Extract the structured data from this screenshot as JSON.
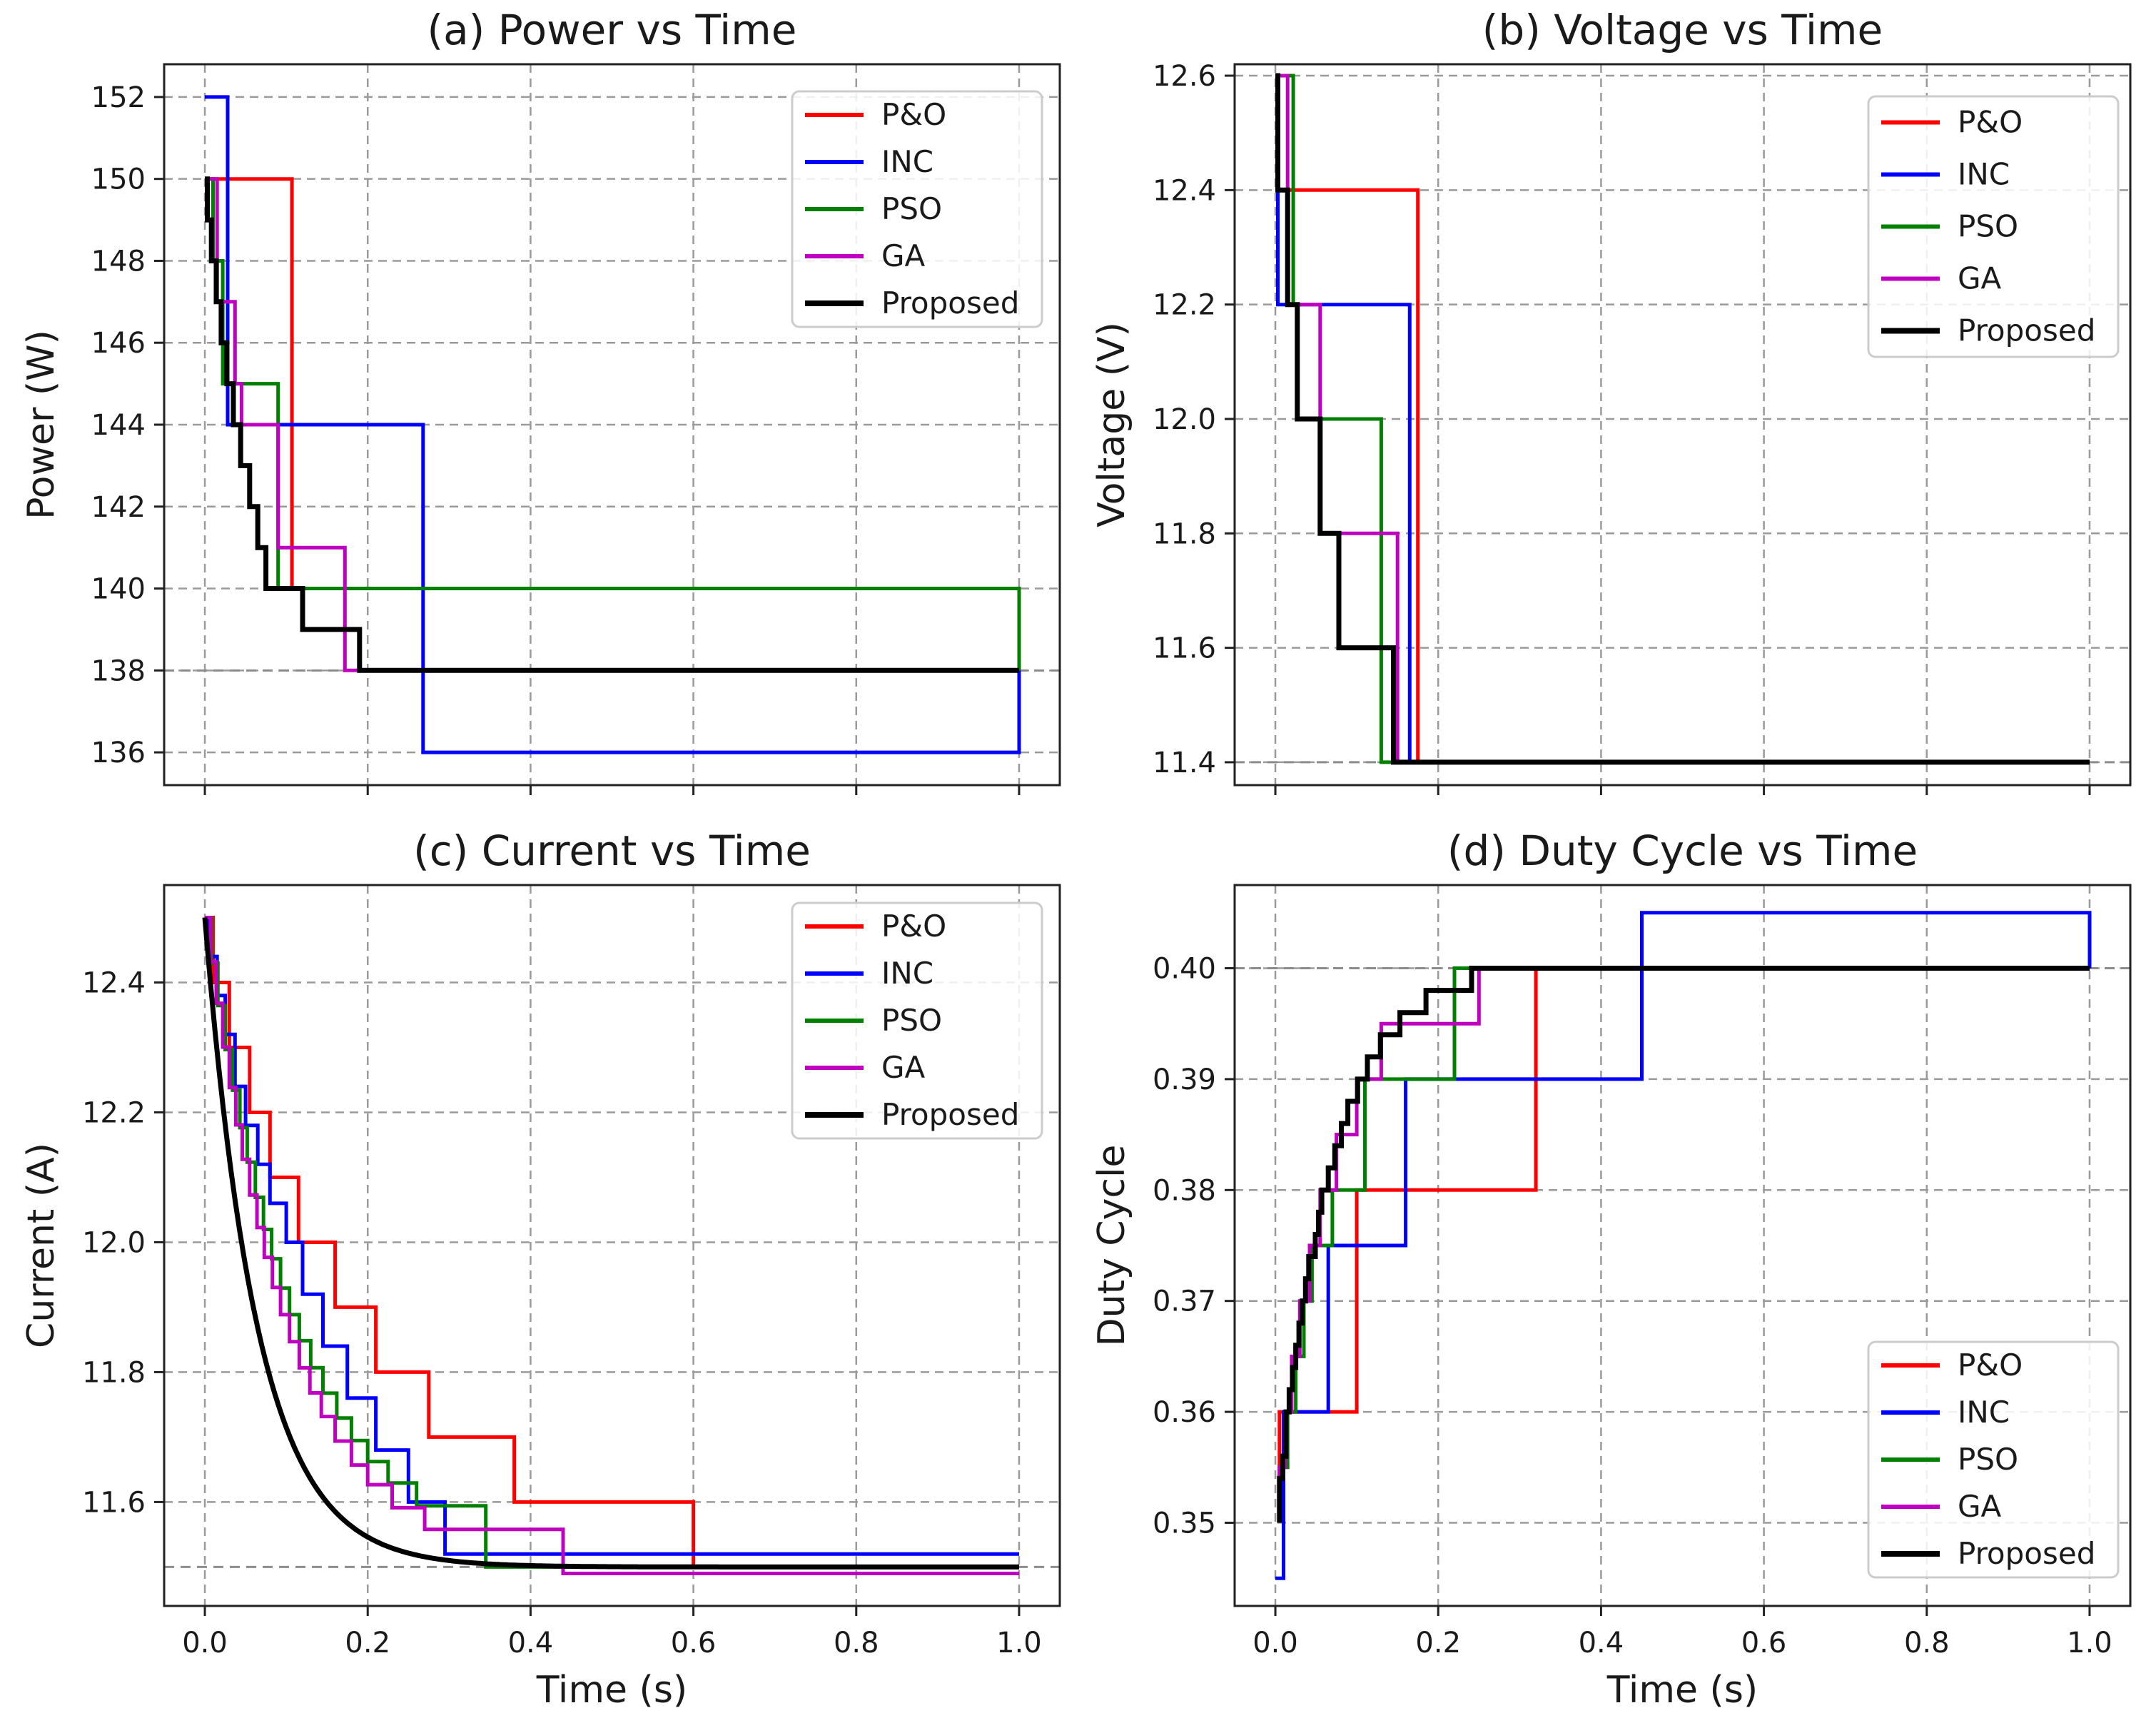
{
  "chart_data": [
    {
      "type": "line",
      "title": "(a) Power vs Time",
      "xlabel": "",
      "ylabel": "Power (W)",
      "xlim": [
        -0.05,
        1.05
      ],
      "ylim": [
        135.2,
        152.8
      ],
      "xticks": [
        0.0,
        0.2,
        0.4,
        0.6,
        0.8,
        1.0
      ],
      "xtick_labels": [
        "",
        "",
        "",
        "",
        "",
        ""
      ],
      "yticks": [
        136,
        138,
        140,
        142,
        144,
        146,
        148,
        150,
        152
      ],
      "ytick_labels": [
        "136",
        "138",
        "140",
        "142",
        "144",
        "146",
        "148",
        "150",
        "152"
      ],
      "grid": true,
      "reference_line": 138,
      "legend_position": "top-right",
      "series": [
        {
          "name": "P&O",
          "color": "#ff0000",
          "width": 5,
          "x": [
            0,
            0.02,
            0.107,
            0.107,
            1.0,
            1.0
          ],
          "y": [
            150,
            150,
            150,
            140,
            140,
            138
          ]
        },
        {
          "name": "INC",
          "color": "#0000ff",
          "width": 5,
          "x": [
            0,
            0.028,
            0.028,
            0.268,
            0.268,
            1.0,
            1.0
          ],
          "y": [
            152,
            152,
            144,
            144,
            136,
            136,
            138
          ]
        },
        {
          "name": "PSO",
          "color": "#008000",
          "width": 5,
          "x": [
            0,
            0.01,
            0.01,
            0.022,
            0.022,
            0.09,
            0.09,
            1.0,
            1.0
          ],
          "y": [
            150,
            150,
            148,
            148,
            145,
            145,
            140,
            140,
            138
          ]
        },
        {
          "name": "GA",
          "color": "#c000c0",
          "width": 5,
          "x": [
            0,
            0.015,
            0.015,
            0.037,
            0.037,
            0.045,
            0.045,
            0.09,
            0.09,
            0.172,
            0.172,
            1.0
          ],
          "y": [
            150,
            150,
            147,
            147,
            145,
            145,
            144,
            144,
            141,
            141,
            138,
            138
          ]
        },
        {
          "name": "Proposed",
          "color": "#000000",
          "width": 7,
          "x": [
            0,
            0.003,
            0.003,
            0.008,
            0.008,
            0.014,
            0.014,
            0.02,
            0.02,
            0.027,
            0.027,
            0.035,
            0.035,
            0.044,
            0.044,
            0.055,
            0.055,
            0.065,
            0.065,
            0.075,
            0.075,
            0.09,
            0.09,
            0.12,
            0.12,
            0.19,
            0.19,
            1.0
          ],
          "y": [
            150,
            150,
            149,
            149,
            148,
            148,
            147,
            147,
            146,
            146,
            145,
            145,
            144,
            144,
            143,
            143,
            142,
            142,
            141,
            141,
            140,
            140,
            140,
            140,
            139,
            139,
            138,
            138
          ]
        }
      ]
    },
    {
      "type": "line",
      "title": "(b) Voltage vs Time",
      "xlabel": "",
      "ylabel": "Voltage (V)",
      "xlim": [
        -0.05,
        1.05
      ],
      "ylim": [
        11.36,
        12.62
      ],
      "xticks": [
        0.0,
        0.2,
        0.4,
        0.6,
        0.8,
        1.0
      ],
      "xtick_labels": [
        "",
        "",
        "",
        "",
        "",
        ""
      ],
      "yticks": [
        11.4,
        11.6,
        11.8,
        12.0,
        12.2,
        12.4,
        12.6
      ],
      "ytick_labels": [
        "11.4",
        "11.6",
        "11.8",
        "12.0",
        "12.2",
        "12.4",
        "12.6"
      ],
      "grid": true,
      "reference_line": 11.4,
      "legend_position": "top-right",
      "series": [
        {
          "name": "P&O",
          "color": "#ff0000",
          "width": 5,
          "x": [
            0,
            0.003,
            0.003,
            0.175,
            0.175,
            1.0
          ],
          "y": [
            12.6,
            12.6,
            12.4,
            12.4,
            11.4,
            11.4
          ]
        },
        {
          "name": "INC",
          "color": "#0000ff",
          "width": 5,
          "x": [
            0,
            0.003,
            0.003,
            0.165,
            0.165,
            1.0
          ],
          "y": [
            12.6,
            12.6,
            12.2,
            12.2,
            11.4,
            11.4
          ]
        },
        {
          "name": "PSO",
          "color": "#008000",
          "width": 5,
          "x": [
            0,
            0.022,
            0.022,
            0.027,
            0.027,
            0.13,
            0.13,
            1.0
          ],
          "y": [
            12.6,
            12.6,
            12.2,
            12.2,
            12.0,
            12.0,
            11.4,
            11.4
          ]
        },
        {
          "name": "GA",
          "color": "#c000c0",
          "width": 5,
          "x": [
            0,
            0.015,
            0.015,
            0.055,
            0.055,
            0.15,
            0.15,
            1.0
          ],
          "y": [
            12.6,
            12.6,
            12.2,
            12.2,
            11.8,
            11.8,
            11.4,
            11.4
          ]
        },
        {
          "name": "Proposed",
          "color": "#000000",
          "width": 7,
          "x": [
            0,
            0.003,
            0.003,
            0.015,
            0.015,
            0.027,
            0.027,
            0.055,
            0.055,
            0.078,
            0.078,
            0.145,
            0.145,
            1.0
          ],
          "y": [
            12.6,
            12.6,
            12.4,
            12.4,
            12.2,
            12.2,
            12.0,
            12.0,
            11.8,
            11.8,
            11.6,
            11.6,
            11.4,
            11.4
          ]
        }
      ]
    },
    {
      "type": "line",
      "title": "(c) Current vs Time",
      "xlabel": "Time (s)",
      "ylabel": "Current (A)",
      "xlim": [
        -0.05,
        1.05
      ],
      "ylim": [
        11.44,
        12.55
      ],
      "xticks": [
        0.0,
        0.2,
        0.4,
        0.6,
        0.8,
        1.0
      ],
      "xtick_labels": [
        "0.0",
        "0.2",
        "0.4",
        "0.6",
        "0.8",
        "1.0"
      ],
      "yticks": [
        11.6,
        11.8,
        12.0,
        12.2,
        12.4
      ],
      "ytick_labels": [
        "11.6",
        "11.8",
        "12.0",
        "12.2",
        "12.4"
      ],
      "grid": true,
      "reference_line": 11.5,
      "legend_position": "top-right",
      "series": [
        {
          "name": "P&O",
          "color": "#ff0000",
          "width": 5,
          "x": [
            0,
            0.01,
            0.01,
            0.03,
            0.03,
            0.055,
            0.055,
            0.08,
            0.08,
            0.115,
            0.115,
            0.16,
            0.16,
            0.21,
            0.21,
            0.275,
            0.275,
            0.38,
            0.38,
            0.6,
            0.6,
            1.0
          ],
          "y": [
            12.5,
            12.5,
            12.4,
            12.4,
            12.3,
            12.3,
            12.2,
            12.2,
            12.1,
            12.1,
            12.0,
            12.0,
            11.9,
            11.9,
            11.8,
            11.8,
            11.7,
            11.7,
            11.6,
            11.6,
            11.5,
            11.5
          ]
        },
        {
          "name": "INC",
          "color": "#0000ff",
          "width": 5,
          "x": [
            0,
            0.005,
            0.005,
            0.015,
            0.015,
            0.025,
            0.025,
            0.037,
            0.037,
            0.05,
            0.05,
            0.065,
            0.065,
            0.08,
            0.08,
            0.1,
            0.1,
            0.12,
            0.12,
            0.145,
            0.145,
            0.175,
            0.175,
            0.21,
            0.21,
            0.25,
            0.25,
            0.295,
            0.295,
            0.425,
            0.425,
            1.0
          ],
          "y": [
            12.5,
            12.5,
            12.44,
            12.44,
            12.38,
            12.38,
            12.32,
            12.32,
            12.24,
            12.24,
            12.18,
            12.18,
            12.12,
            12.12,
            12.06,
            12.06,
            12.0,
            12.0,
            11.92,
            11.92,
            11.84,
            11.84,
            11.76,
            11.76,
            11.68,
            11.68,
            11.6,
            11.6,
            11.52,
            11.52,
            11.52,
            11.52
          ]
        }
      ],
      "curves": [
        {
          "name": "PSO",
          "color": "#008000",
          "width": 5,
          "kind": "staircase_exp",
          "y0": 12.5,
          "yinf": 11.5,
          "tau": 0.11,
          "steps": [
            0.0,
            0.008,
            0.016,
            0.025,
            0.034,
            0.043,
            0.052,
            0.062,
            0.072,
            0.082,
            0.093,
            0.104,
            0.116,
            0.13,
            0.145,
            0.162,
            0.18,
            0.2,
            0.225,
            0.26,
            0.345
          ],
          "end": 1.0
        },
        {
          "name": "GA",
          "color": "#c000c0",
          "width": 5,
          "kind": "staircase_exp",
          "y0": 12.5,
          "yinf": 11.49,
          "tau": 0.1,
          "steps": [
            0.0,
            0.007,
            0.014,
            0.022,
            0.03,
            0.038,
            0.046,
            0.055,
            0.064,
            0.073,
            0.083,
            0.093,
            0.104,
            0.116,
            0.129,
            0.143,
            0.16,
            0.18,
            0.2,
            0.23,
            0.27,
            0.44
          ],
          "end": 1.0
        },
        {
          "name": "Proposed",
          "color": "#000000",
          "width": 7,
          "kind": "smooth_exp",
          "y0": 12.5,
          "yinf": 11.5,
          "tau": 0.065,
          "end": 1.0
        }
      ]
    },
    {
      "type": "line",
      "title": "(d) Duty Cycle vs Time",
      "xlabel": "Time (s)",
      "ylabel": "Duty Cycle",
      "xlim": [
        -0.05,
        1.05
      ],
      "ylim": [
        0.3425,
        0.4075
      ],
      "xticks": [
        0.0,
        0.2,
        0.4,
        0.6,
        0.8,
        1.0
      ],
      "xtick_labels": [
        "0.0",
        "0.2",
        "0.4",
        "0.6",
        "0.8",
        "1.0"
      ],
      "yticks": [
        0.35,
        0.36,
        0.37,
        0.38,
        0.39,
        0.4
      ],
      "ytick_labels": [
        "0.35",
        "0.36",
        "0.37",
        "0.38",
        "0.39",
        "0.40"
      ],
      "grid": true,
      "reference_line": 0.4,
      "legend_position": "bottom-right",
      "series": [
        {
          "name": "P&O",
          "color": "#ff0000",
          "width": 5,
          "x": [
            0.005,
            0.005,
            0.1,
            0.1,
            0.32,
            0.32,
            1.0
          ],
          "y": [
            0.35,
            0.36,
            0.36,
            0.38,
            0.38,
            0.4,
            0.4
          ]
        },
        {
          "name": "INC",
          "color": "#0000ff",
          "width": 5,
          "x": [
            0.0,
            0.01,
            0.01,
            0.065,
            0.065,
            0.16,
            0.16,
            0.45,
            0.45,
            1.0,
            1.0
          ],
          "y": [
            0.345,
            0.345,
            0.36,
            0.36,
            0.375,
            0.375,
            0.39,
            0.39,
            0.405,
            0.405,
            0.4
          ]
        },
        {
          "name": "PSO",
          "color": "#008000",
          "width": 5,
          "x": [
            0.005,
            0.005,
            0.015,
            0.015,
            0.025,
            0.025,
            0.035,
            0.035,
            0.045,
            0.045,
            0.07,
            0.07,
            0.11,
            0.11,
            0.16,
            0.16,
            0.22,
            0.22,
            1.0
          ],
          "y": [
            0.35,
            0.355,
            0.355,
            0.36,
            0.36,
            0.365,
            0.365,
            0.37,
            0.37,
            0.375,
            0.375,
            0.38,
            0.38,
            0.39,
            0.39,
            0.39,
            0.39,
            0.4,
            0.4
          ]
        },
        {
          "name": "GA",
          "color": "#c000c0",
          "width": 5,
          "x": [
            0.005,
            0.005,
            0.012,
            0.012,
            0.02,
            0.02,
            0.03,
            0.03,
            0.042,
            0.042,
            0.055,
            0.055,
            0.075,
            0.075,
            0.1,
            0.1,
            0.13,
            0.13,
            0.18,
            0.18,
            0.25,
            0.25,
            1.0
          ],
          "y": [
            0.35,
            0.355,
            0.355,
            0.36,
            0.36,
            0.365,
            0.365,
            0.37,
            0.37,
            0.375,
            0.375,
            0.38,
            0.38,
            0.385,
            0.385,
            0.39,
            0.39,
            0.395,
            0.395,
            0.395,
            0.395,
            0.4,
            0.4
          ]
        }
      ],
      "curves": [
        {
          "name": "Proposed",
          "color": "#000000",
          "width": 7,
          "kind": "staircase_rise",
          "y0": 0.35,
          "yinf": 0.4,
          "tau": 0.065,
          "quant": 0.002,
          "t_end_rise": 0.24,
          "end": 1.0
        }
      ]
    }
  ],
  "legend_labels": [
    "P&O",
    "INC",
    "PSO",
    "GA",
    "Proposed"
  ]
}
